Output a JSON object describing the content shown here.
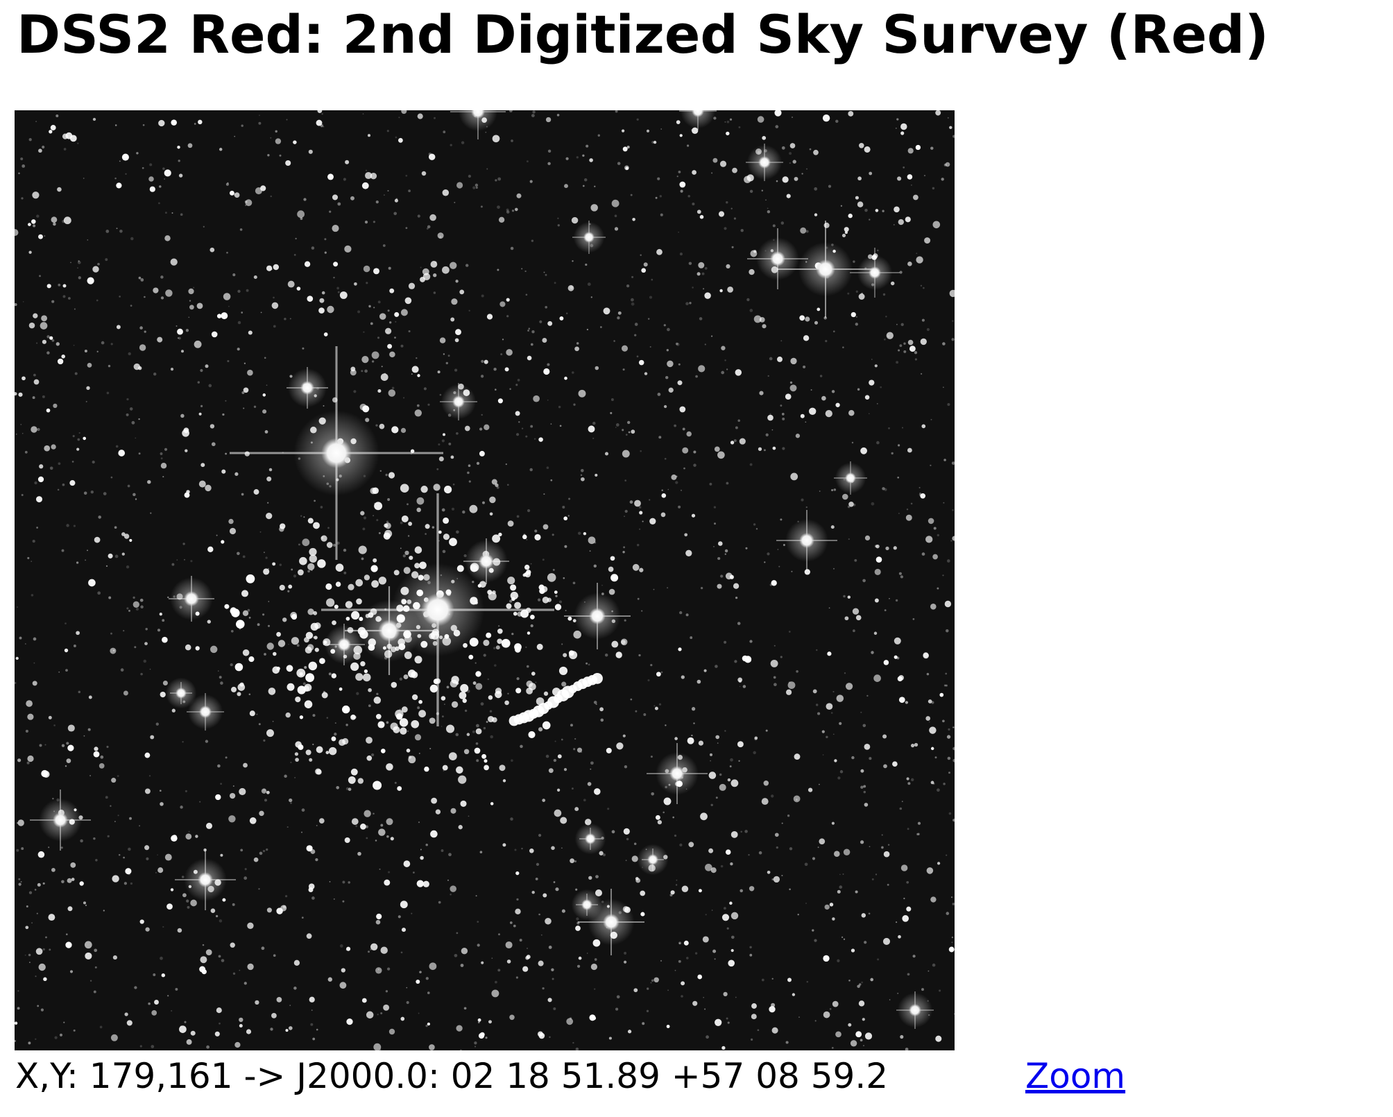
{
  "title": "DSS2 Red: 2nd Digitized Sky Survey (Red)",
  "image": {
    "background_color": "#111111",
    "star_color": "#ffffff"
  },
  "readout": {
    "text": "X,Y: 179,161 -> J2000.0: 02 18 51.89 +57 08 59.2"
  },
  "links": {
    "zoom_label": "Zoom",
    "link_color": "#0000ee"
  }
}
